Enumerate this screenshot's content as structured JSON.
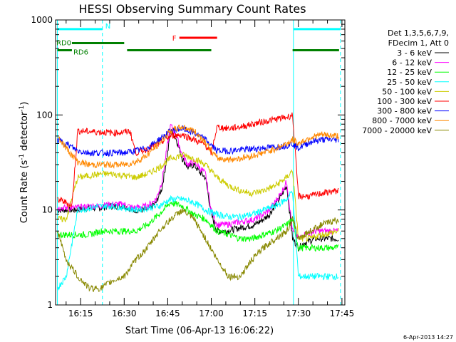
{
  "chart_data": {
    "type": "line",
    "title": "HESSI Observing Summary Count Rates",
    "xlabel": "Start Time (06-Apr-13 16:06:22)",
    "ylabel_main": "Count Rate (s",
    "ylabel_sup1": "-1",
    "ylabel_mid": " detector",
    "ylabel_sup2": "-1",
    "ylabel_end": ")",
    "yscale": "log",
    "ylim": [
      1,
      1000
    ],
    "xlim_minutes": [
      6.37,
      106.0
    ],
    "xticks": [
      {
        "label": "16:15",
        "minute": 15
      },
      {
        "label": "16:30",
        "minute": 30
      },
      {
        "label": "16:45",
        "minute": 45
      },
      {
        "label": "17:00",
        "minute": 60
      },
      {
        "label": "17:15",
        "minute": 75
      },
      {
        "label": "17:30",
        "minute": 90
      },
      {
        "label": "17:45",
        "minute": 105
      }
    ],
    "yticks": [
      {
        "label": "1",
        "value": 1
      },
      {
        "label": "10",
        "value": 10
      },
      {
        "label": "100",
        "value": 100
      },
      {
        "label": "1000",
        "value": 1000
      }
    ],
    "legend_header": [
      "Det 1,3,5,6,7,9,",
      "FDecim 1, Att 0"
    ],
    "legend_position": "right",
    "series": [
      {
        "name": "3 - 6 keV",
        "color": "#000000",
        "x": [
          7,
          13,
          18,
          22,
          25,
          30,
          33,
          38,
          41,
          43,
          45,
          46,
          48,
          50,
          52,
          54,
          56,
          58,
          60,
          62,
          65,
          70,
          75,
          78,
          80,
          84,
          86,
          88,
          90,
          92,
          96,
          100,
          104
        ],
        "y": [
          10,
          10,
          10.5,
          10.5,
          11,
          11,
          10,
          10,
          12,
          17,
          40,
          70,
          55,
          35,
          28,
          30,
          25,
          22,
          9,
          6,
          6,
          6.5,
          7,
          8,
          9,
          14,
          18,
          5,
          4,
          4.5,
          5,
          5,
          5
        ]
      },
      {
        "name": "6 - 12 keV",
        "color": "#ff00ff",
        "x": [
          7,
          13,
          18,
          22,
          25,
          30,
          33,
          38,
          41,
          43,
          45,
          46,
          48,
          50,
          52,
          54,
          56,
          58,
          60,
          62,
          65,
          70,
          75,
          78,
          80,
          84,
          86,
          88,
          90,
          92,
          96,
          100,
          104
        ],
        "y": [
          10.5,
          10.5,
          11,
          11,
          11.5,
          11.5,
          10.5,
          11,
          13,
          20,
          50,
          78,
          60,
          38,
          30,
          32,
          28,
          24,
          10,
          7,
          7,
          7.5,
          8,
          9,
          10,
          15,
          20,
          6,
          5,
          5.5,
          6,
          6,
          6
        ]
      },
      {
        "name": "12 - 25 keV",
        "color": "#00ff00",
        "x": [
          7,
          10,
          14,
          18,
          22,
          26,
          30,
          34,
          38,
          42,
          46,
          50,
          54,
          58,
          62,
          66,
          70,
          74,
          78,
          82,
          86,
          88,
          90,
          94,
          98,
          104
        ],
        "y": [
          5.5,
          5.5,
          5.5,
          5.5,
          6,
          6,
          6,
          6,
          7,
          9,
          12,
          11,
          9,
          8,
          6,
          5.5,
          5,
          5,
          5.5,
          6,
          7,
          8,
          4,
          4,
          4,
          4
        ]
      },
      {
        "name": "25 - 50 keV",
        "color": "#00ffff",
        "x": [
          7,
          10,
          14,
          18,
          22,
          26,
          30,
          34,
          38,
          42,
          46,
          50,
          54,
          58,
          62,
          66,
          70,
          74,
          78,
          82,
          86,
          88,
          90,
          94,
          98,
          104
        ],
        "y": [
          1.5,
          2,
          10,
          10.5,
          11,
          11,
          10.5,
          10,
          10.5,
          11,
          13,
          13,
          12,
          10,
          9,
          8.5,
          8.5,
          9,
          10,
          11,
          13,
          16,
          2,
          2,
          2,
          2
        ]
      },
      {
        "name": "50 - 100 keV",
        "color": "#cccc00",
        "x": [
          7,
          10,
          14,
          18,
          22,
          26,
          30,
          34,
          38,
          42,
          46,
          50,
          54,
          58,
          62,
          66,
          70,
          74,
          78,
          82,
          86,
          88,
          90,
          94,
          98,
          104
        ],
        "y": [
          8,
          8,
          22,
          23,
          24,
          24,
          23,
          22,
          24,
          28,
          35,
          38,
          35,
          30,
          22,
          18,
          16,
          15,
          16,
          18,
          22,
          26,
          5,
          5,
          5.5,
          6
        ]
      },
      {
        "name": "100 - 300 keV",
        "color": "#ff0000",
        "x": [
          7,
          10,
          12,
          14,
          18,
          22,
          26,
          30,
          32,
          34,
          38,
          42,
          46,
          50,
          54,
          58,
          60,
          62,
          66,
          70,
          74,
          78,
          82,
          86,
          88,
          90,
          94,
          98,
          104
        ],
        "y": [
          13,
          12,
          11,
          68,
          67,
          66,
          65,
          66,
          68,
          40,
          44,
          50,
          60,
          62,
          55,
          48,
          40,
          75,
          72,
          75,
          80,
          85,
          90,
          95,
          100,
          14,
          14,
          15,
          16
        ]
      },
      {
        "name": "300 - 800 keV",
        "color": "#0000ff",
        "x": [
          7,
          10,
          14,
          18,
          22,
          26,
          30,
          34,
          38,
          42,
          46,
          50,
          54,
          58,
          60,
          62,
          66,
          70,
          74,
          78,
          82,
          86,
          88,
          90,
          94,
          98,
          104
        ],
        "y": [
          55,
          50,
          42,
          40,
          40,
          40,
          40,
          42,
          45,
          55,
          68,
          72,
          65,
          55,
          48,
          42,
          42,
          43,
          44,
          45,
          46,
          48,
          50,
          45,
          52,
          55,
          55
        ]
      },
      {
        "name": "800 - 7000 keV",
        "color": "#ff8800",
        "x": [
          7,
          10,
          14,
          18,
          22,
          26,
          30,
          34,
          38,
          42,
          46,
          50,
          54,
          58,
          60,
          62,
          66,
          70,
          74,
          78,
          82,
          86,
          88,
          90,
          94,
          98,
          104
        ],
        "y": [
          60,
          45,
          32,
          30,
          30,
          30,
          30,
          32,
          38,
          50,
          68,
          75,
          68,
          52,
          42,
          35,
          34,
          35,
          37,
          40,
          44,
          50,
          55,
          50,
          58,
          62,
          60
        ]
      },
      {
        "name": "7000 - 20000 keV",
        "color": "#888800",
        "x": [
          7,
          10,
          14,
          18,
          22,
          26,
          30,
          34,
          38,
          42,
          46,
          50,
          54,
          58,
          62,
          66,
          70,
          74,
          78,
          82,
          86,
          88,
          90,
          94,
          98,
          104
        ],
        "y": [
          6,
          3,
          2,
          1.5,
          1.5,
          1.8,
          2,
          3,
          4,
          6,
          8,
          10,
          8,
          5,
          3,
          2,
          2,
          3,
          4,
          5,
          6,
          8,
          5,
          6,
          7,
          8
        ]
      }
    ],
    "vertical_lines": [
      {
        "style": "solid",
        "color": "#00ffff",
        "minute": 7
      },
      {
        "style": "dashed",
        "color": "#00ffff",
        "minute": 22.5
      },
      {
        "style": "solid",
        "color": "#00ffff",
        "minute": 88.3
      },
      {
        "style": "dashed",
        "color": "#00ffff",
        "minute": 104.5
      }
    ],
    "flags": [
      {
        "label": "N",
        "color": "#00ffff",
        "y": 800,
        "segments": [
          [
            7,
            22.5
          ],
          [
            88.3,
            104.5
          ]
        ]
      },
      {
        "label": "F",
        "color": "#ff0000",
        "y": 650,
        "segments": [
          [
            49,
            62
          ]
        ]
      },
      {
        "label": "RD0",
        "color": "#008000",
        "y": 570,
        "segments": [
          [
            12,
            30
          ]
        ]
      },
      {
        "label": "RD6",
        "color": "#008000",
        "y": 480,
        "segments": [
          [
            7,
            12
          ],
          [
            31,
            60
          ],
          [
            88,
            104
          ]
        ]
      }
    ]
  },
  "footer_timestamp": "6-Apr-2013 14:27"
}
